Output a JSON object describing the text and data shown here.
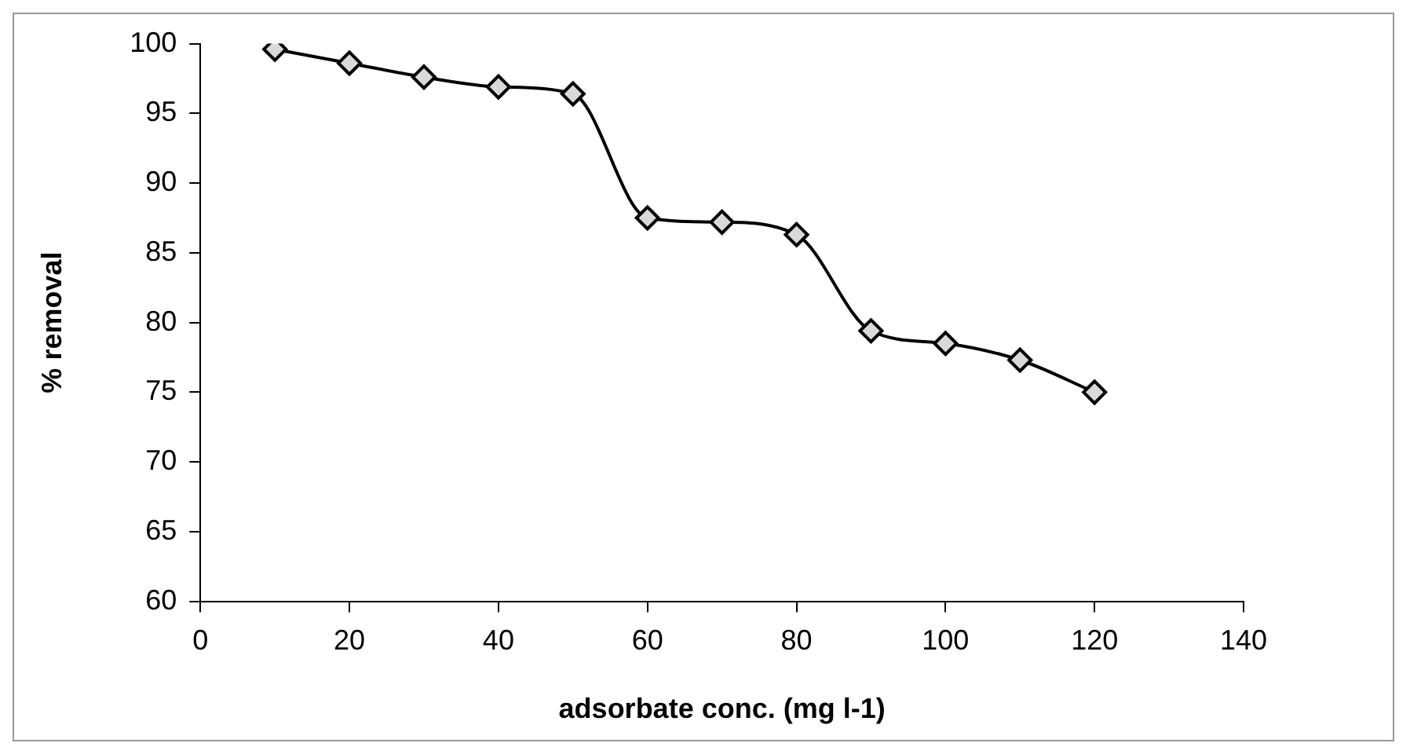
{
  "chart_data": {
    "type": "line",
    "xlabel": "adsorbate conc. (mg l-1)",
    "ylabel": "% removal",
    "x": [
      10,
      20,
      30,
      40,
      50,
      60,
      70,
      80,
      90,
      100,
      110,
      120
    ],
    "series": [
      {
        "color": "#000000",
        "values": [
          99.6,
          98.6,
          97.6,
          96.9,
          96.4,
          87.5,
          87.2,
          86.3,
          79.4,
          78.5,
          77.3,
          75.0
        ]
      }
    ],
    "xlim": [
      0,
      140
    ],
    "xticks": [
      0,
      20,
      40,
      60,
      80,
      100,
      120,
      140
    ],
    "ylim": [
      60,
      100
    ],
    "yticks": [
      60,
      65,
      70,
      75,
      80,
      85,
      90,
      95,
      100
    ],
    "grid": false,
    "legend": false,
    "marker": "diamond",
    "line_style": "solid"
  }
}
